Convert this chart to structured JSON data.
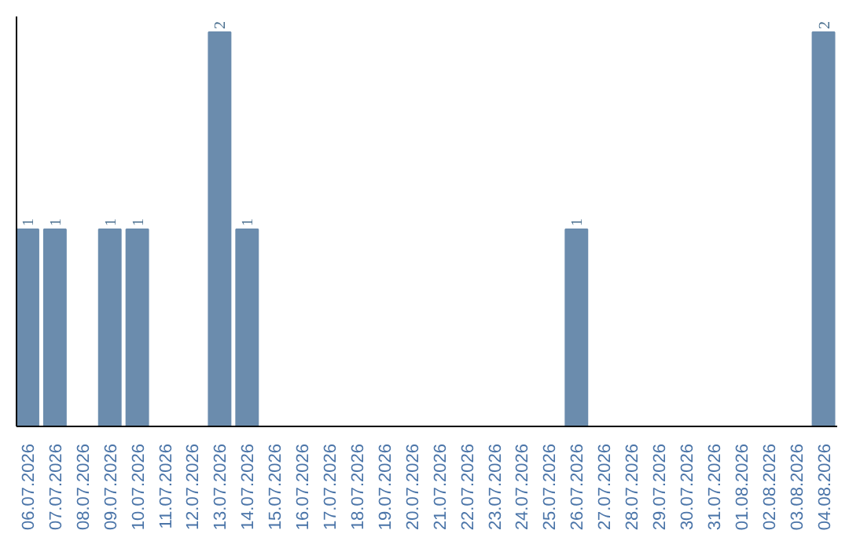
{
  "chart_data": {
    "type": "bar",
    "categories": [
      "06.07.2026",
      "07.07.2026",
      "08.07.2026",
      "09.07.2026",
      "10.07.2026",
      "11.07.2026",
      "12.07.2026",
      "13.07.2026",
      "14.07.2026",
      "15.07.2026",
      "16.07.2026",
      "17.07.2026",
      "18.07.2026",
      "19.07.2026",
      "20.07.2026",
      "21.07.2026",
      "22.07.2026",
      "23.07.2026",
      "24.07.2026",
      "25.07.2026",
      "26.07.2026",
      "27.07.2026",
      "28.07.2026",
      "29.07.2026",
      "30.07.2026",
      "31.07.2026",
      "01.08.2026",
      "02.08.2026",
      "03.08.2026",
      "04.08.2026"
    ],
    "values": [
      1,
      1,
      0,
      1,
      1,
      0,
      0,
      2,
      1,
      0,
      0,
      0,
      0,
      0,
      0,
      0,
      0,
      0,
      0,
      0,
      1,
      0,
      0,
      0,
      0,
      0,
      0,
      0,
      0,
      2
    ],
    "value_labels": [
      "1",
      "1",
      null,
      "1",
      "1",
      null,
      null,
      "2",
      "1",
      null,
      null,
      null,
      null,
      null,
      null,
      null,
      null,
      null,
      null,
      null,
      "1",
      null,
      null,
      null,
      null,
      null,
      null,
      null,
      null,
      "2"
    ],
    "color": "#6b8cad",
    "ylim": [
      0,
      2.08
    ],
    "tick_labels": "x",
    "grid": false
  }
}
